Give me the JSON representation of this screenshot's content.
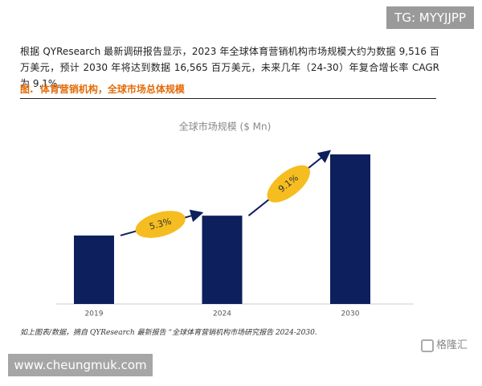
{
  "watermark": "TG: MYYJJPP",
  "paragraph": "根据 QYResearch 最新调研报告显示，2023 年全球体育营销机构市场规模大约为数据 9,516 百万美元，预计 2030 年将达到数据 16,565 百万美元，未来几年（24-30）年复合增长率 CAGR 为 9.1%。",
  "figure_caption": "图.  体育营销机构，全球市场总体规模",
  "chart_data": {
    "type": "bar",
    "title": "全球市场规模 ($ Mn)",
    "categories": [
      "2019",
      "2024",
      "2030"
    ],
    "values": [
      7600,
      9800,
      16600
    ],
    "color": "#0d1f5c",
    "annotations": [
      "5.3%",
      "9.1%"
    ],
    "annotation_color": "#f5bd1f"
  },
  "source": "如上图表/数据，摘自 QYResearch 最新报告 “全球体育营销机构市场研究报告 2024-2030.",
  "site": "www.cheungmuk.com",
  "logo": "格隆汇"
}
